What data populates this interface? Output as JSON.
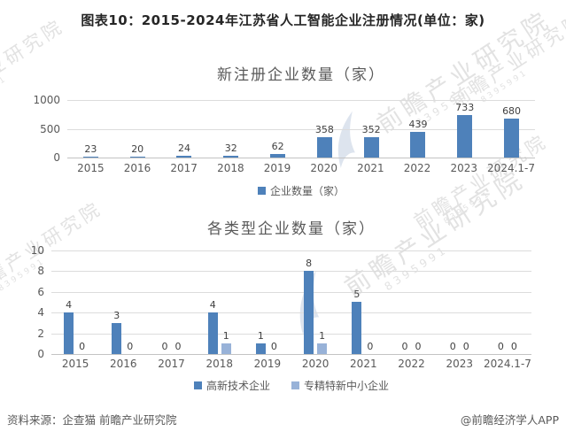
{
  "page_title": "图表10：2015-2024年江苏省人工智能企业注册情况(单位：家)",
  "footer": {
    "source": "资料来源：企查猫 前瞻产业研究院",
    "credit": "@前瞻经济学人APP"
  },
  "watermark": {
    "text": "前瞻产业研究院",
    "digits": "8395991"
  },
  "colors": {
    "primary": "#4e81ba",
    "secondary": "#98b2d8",
    "grid": "#dcdcdc",
    "axis": "#c3c3c3",
    "tick_text": "#595959",
    "label_text": "#404040",
    "title_text": "#595959",
    "watermark": "#e2e2e2"
  },
  "chart_data": [
    {
      "type": "bar",
      "title": "新注册企业数量（家）",
      "categories": [
        "2015",
        "2016",
        "2017",
        "2018",
        "2019",
        "2020",
        "2021",
        "2022",
        "2023",
        "2024.1-7"
      ],
      "series": [
        {
          "name": "企业数量（家）",
          "color": "primary",
          "values": [
            23,
            20,
            24,
            32,
            62,
            358,
            352,
            439,
            733,
            680
          ]
        }
      ],
      "ylim": [
        0,
        1000
      ],
      "yticks": [
        0,
        500,
        1000
      ],
      "grid": true,
      "data_labels": true,
      "legend_position": "bottom"
    },
    {
      "type": "bar",
      "title": "各类型企业数量（家）",
      "categories": [
        "2015",
        "2016",
        "2017",
        "2018",
        "2019",
        "2020",
        "2021",
        "2022",
        "2023",
        "2024.1-7"
      ],
      "series": [
        {
          "name": "高新技术企业",
          "color": "primary",
          "values": [
            4,
            3,
            0,
            4,
            1,
            8,
            5,
            0,
            0,
            0
          ]
        },
        {
          "name": "专精特新中小企业",
          "color": "secondary",
          "values": [
            0,
            0,
            0,
            1,
            0,
            1,
            0,
            0,
            0,
            0
          ]
        }
      ],
      "ylim": [
        0,
        10
      ],
      "yticks": [
        0,
        2,
        4,
        6,
        8,
        10
      ],
      "grid": true,
      "data_labels": true,
      "legend_position": "bottom"
    }
  ]
}
